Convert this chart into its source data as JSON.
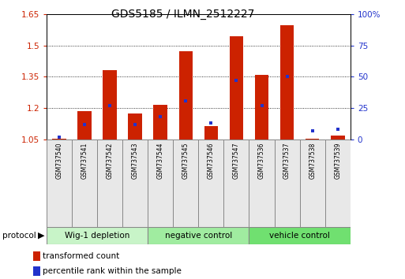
{
  "title": "GDS5185 / ILMN_2512227",
  "samples": [
    "GSM737540",
    "GSM737541",
    "GSM737542",
    "GSM737543",
    "GSM737544",
    "GSM737545",
    "GSM737546",
    "GSM737547",
    "GSM737536",
    "GSM737537",
    "GSM737538",
    "GSM737539"
  ],
  "red_values": [
    1.053,
    1.185,
    1.38,
    1.175,
    1.215,
    1.47,
    1.115,
    1.545,
    1.36,
    1.595,
    1.055,
    1.07
  ],
  "blue_percentiles": [
    2,
    12,
    27,
    12,
    18,
    31,
    13,
    47,
    27,
    50,
    7,
    8
  ],
  "ymin": 1.05,
  "ymax": 1.65,
  "yticks": [
    1.05,
    1.2,
    1.35,
    1.5,
    1.65
  ],
  "ytick_labels": [
    "1.05",
    "1.2",
    "1.35",
    "1.5",
    "1.65"
  ],
  "y2min": 0,
  "y2max": 100,
  "y2ticks": [
    0,
    25,
    50,
    75,
    100
  ],
  "y2tick_labels": [
    "0",
    "25",
    "50",
    "75",
    "100%"
  ],
  "groups": [
    {
      "label": "Wig-1 depletion",
      "indices": [
        0,
        1,
        2,
        3
      ],
      "color": "#c8f4c8"
    },
    {
      "label": "negative control",
      "indices": [
        4,
        5,
        6,
        7
      ],
      "color": "#a0eca0"
    },
    {
      "label": "vehicle control",
      "indices": [
        8,
        9,
        10,
        11
      ],
      "color": "#70e070"
    }
  ],
  "bar_color": "#cc2200",
  "marker_color": "#2233cc",
  "base": 1.05,
  "bar_width": 0.55,
  "legend_red": "transformed count",
  "legend_blue": "percentile rank within the sample",
  "protocol_label": "protocol",
  "grid_values": [
    1.2,
    1.35,
    1.5
  ],
  "tick_fontsize": 7.5,
  "title_fontsize": 10
}
